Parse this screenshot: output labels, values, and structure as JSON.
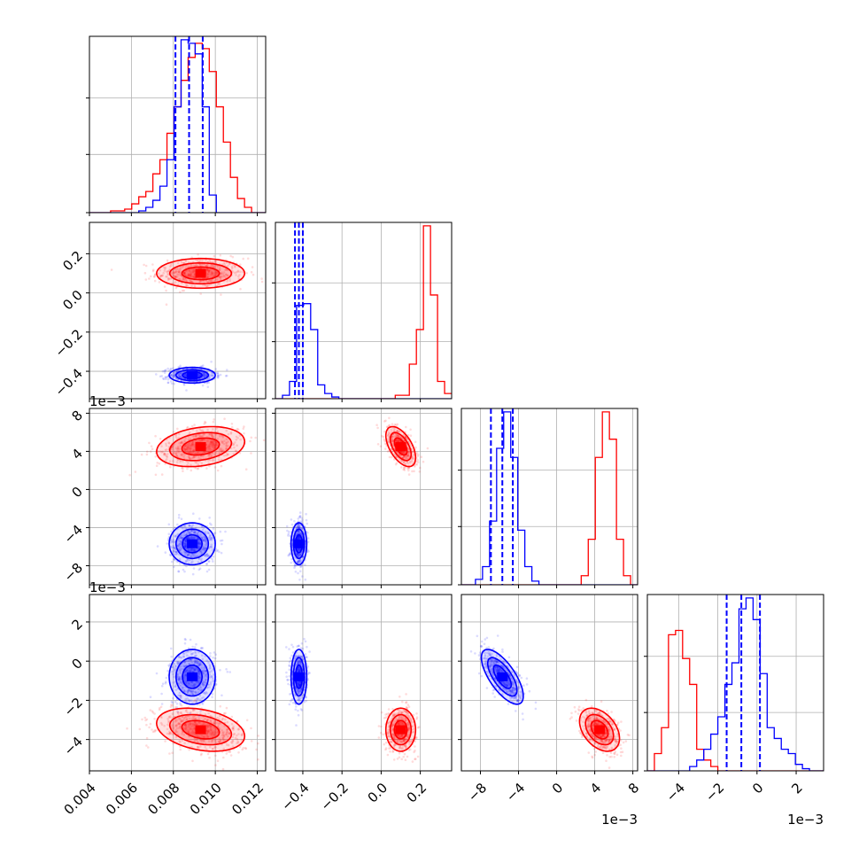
{
  "chart_data": {
    "type": "corner",
    "parameters": [
      {
        "ticks": [
          0.004,
          0.006,
          0.008,
          0.01,
          0.012
        ],
        "tick_labels": [
          "0.004",
          "0.006",
          "0.008",
          "0.010",
          "0.012"
        ],
        "range": [
          0.004,
          0.0124
        ],
        "offset_label": ""
      },
      {
        "ticks": [
          -0.4,
          -0.2,
          0.0,
          0.2
        ],
        "tick_labels": [
          "−0.4",
          "−0.2",
          "0.0",
          "0.2"
        ],
        "range": [
          -0.54,
          0.36
        ],
        "offset_label": ""
      },
      {
        "ticks": [
          -8,
          -4,
          0,
          4,
          8
        ],
        "tick_labels": [
          "−8",
          "−4",
          "0",
          "4",
          "8"
        ],
        "range": [
          -10.0,
          8.5
        ],
        "offset_label": "1e−3"
      },
      {
        "ticks": [
          -4,
          -2,
          0,
          2
        ],
        "tick_labels": [
          "−4",
          "−2",
          "0",
          "2"
        ],
        "range": [
          -5.6,
          3.4
        ],
        "offset_label": "1e−3"
      }
    ],
    "series": [
      {
        "color": "#ff0000",
        "mean": [
          0.0093,
          0.1,
          4.5,
          -3.5
        ],
        "std": [
          0.00105,
          0.038,
          1.05,
          0.55
        ],
        "corr": [
          [
            1,
            0,
            0.25,
            -0.3
          ],
          [
            0,
            1,
            -0.55,
            0
          ],
          [
            0.25,
            -0.55,
            1,
            -0.4
          ],
          [
            -0.3,
            0,
            -0.4,
            1
          ]
        ],
        "hist": [
          {
            "edges": [
              0.004,
              0.0124
            ],
            "counts": [
              0,
              0,
              0,
              1,
              1,
              2,
              5,
              9,
              12,
              22,
              30,
              45,
              60,
              75,
              88,
              96,
              93,
              80,
              60,
              40,
              20,
              8,
              3,
              0,
              0
            ]
          },
          {
            "edges": [
              -0.54,
              0.36
            ],
            "counts": [
              0,
              0,
              0,
              0,
              0,
              0,
              0,
              0,
              0,
              0,
              0,
              0,
              0,
              0,
              0,
              0,
              0,
              2,
              2,
              20,
              40,
              100,
              60,
              10,
              3
            ]
          },
          {
            "edges": [
              -10.0,
              8.5
            ],
            "counts": [
              0,
              0,
              0,
              0,
              0,
              0,
              0,
              0,
              0,
              0,
              0,
              0,
              0,
              0,
              0,
              0,
              0,
              5,
              25,
              70,
              95,
              80,
              25,
              5,
              0
            ]
          },
          {
            "edges": [
              -5.6,
              3.4
            ],
            "counts": [
              0,
              8,
              20,
              63,
              65,
              52,
              40,
              10,
              5,
              2,
              0,
              0,
              0,
              0,
              0,
              0,
              0,
              0,
              0,
              0,
              0,
              0,
              0,
              0,
              0
            ]
          }
        ]
      },
      {
        "color": "#0000ff",
        "mean": [
          0.0089,
          -0.42,
          -5.7,
          -0.8
        ],
        "std": [
          0.00055,
          0.02,
          1.1,
          0.7
        ],
        "corr": [
          [
            1,
            0,
            0,
            0
          ],
          [
            0,
            1,
            0,
            0
          ],
          [
            0,
            0,
            1,
            -0.7
          ],
          [
            0,
            0,
            -0.7,
            1
          ]
        ],
        "hist": [
          {
            "edges": [
              0.004,
              0.0124
            ],
            "counts": [
              0,
              0,
              0,
              0,
              0,
              0,
              0,
              1,
              3,
              7,
              15,
              30,
              60,
              98,
              96,
              90,
              60,
              10,
              0,
              0,
              0,
              0,
              0,
              0,
              0
            ]
          },
          {
            "edges": [
              -0.54,
              0.36
            ],
            "counts": [
              0,
              2,
              10,
              54,
              55,
              40,
              8,
              3,
              1,
              0,
              0,
              0,
              0,
              0,
              0,
              0,
              0,
              0,
              0,
              0,
              0,
              0,
              0,
              0,
              0
            ]
          },
          {
            "edges": [
              -10.0,
              8.5
            ],
            "counts": [
              0,
              0,
              3,
              10,
              35,
              75,
              95,
              70,
              30,
              10,
              2,
              0,
              0,
              0,
              0,
              0,
              0,
              0,
              0,
              0,
              0,
              0,
              0,
              0,
              0
            ]
          },
          {
            "edges": [
              -5.6,
              3.4
            ],
            "counts": [
              0,
              0,
              0,
              0,
              0,
              0,
              2,
              5,
              10,
              17,
              25,
              40,
              50,
              75,
              80,
              70,
              45,
              20,
              15,
              10,
              8,
              3,
              1,
              0,
              0
            ]
          }
        ],
        "quantiles": [
          [
            0.0081,
            0.00875,
            0.0094
          ],
          [
            -0.44,
            -0.42,
            -0.4
          ],
          [
            -6.9,
            -5.7,
            -4.6
          ],
          [
            -1.55,
            -0.8,
            0.15
          ]
        ]
      }
    ],
    "grid": true,
    "legend": "none"
  }
}
